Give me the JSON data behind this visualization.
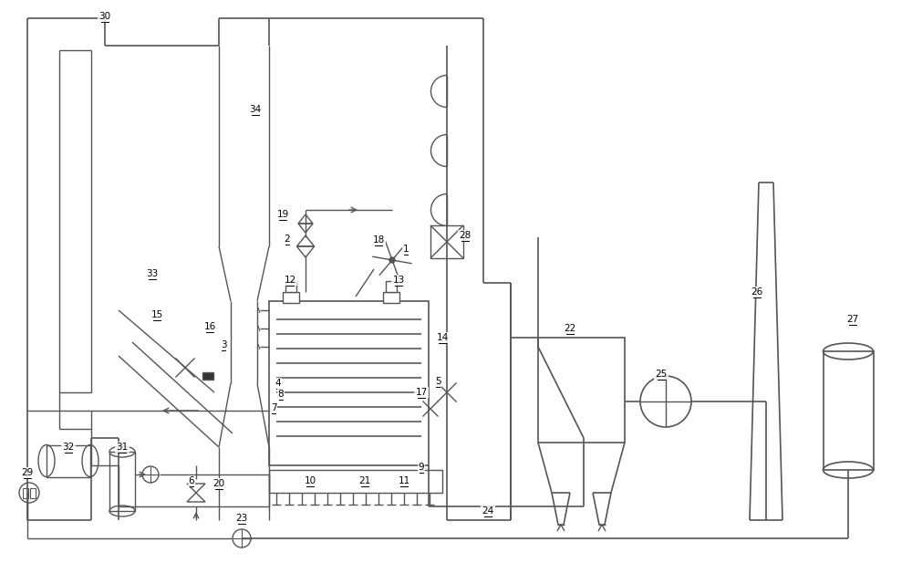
{
  "bg_color": "#ffffff",
  "lc": "#555555",
  "lw": 1.0,
  "fig_width": 10.0,
  "fig_height": 6.17
}
